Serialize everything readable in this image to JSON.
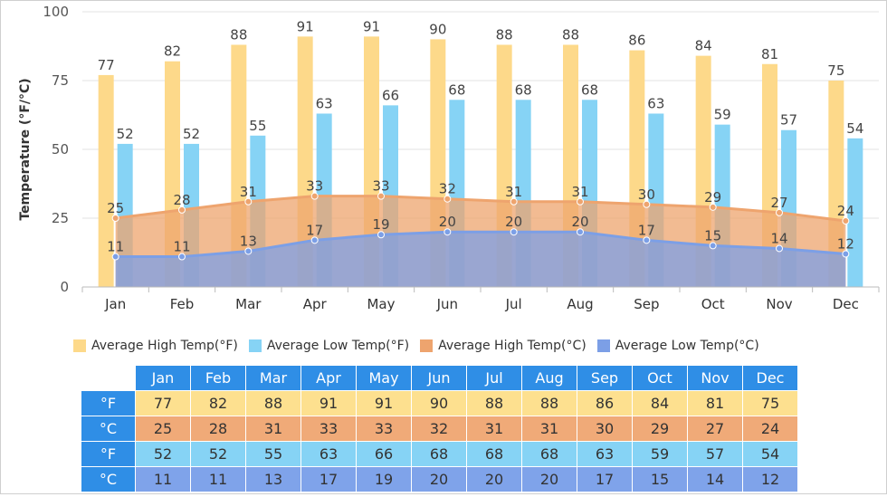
{
  "chart_data": {
    "type": "bar",
    "categories": [
      "Jan",
      "Feb",
      "Mar",
      "Apr",
      "May",
      "Jun",
      "Jul",
      "Aug",
      "Sep",
      "Oct",
      "Nov",
      "Dec"
    ],
    "ylabel": "Temperature (°F/°C)",
    "ylim": [
      0,
      100
    ],
    "yticks": [
      0,
      25,
      50,
      75,
      100
    ],
    "grid": true,
    "legend_position": "bottom",
    "series": [
      {
        "name": "Average High Temp(°F)",
        "kind": "bar",
        "color": "#fdd98a",
        "values": [
          77,
          82,
          88,
          91,
          91,
          90,
          88,
          88,
          86,
          84,
          81,
          75
        ]
      },
      {
        "name": "Average Low Temp(°F)",
        "kind": "bar",
        "color": "#86d3f5",
        "values": [
          52,
          52,
          55,
          63,
          66,
          68,
          68,
          68,
          63,
          59,
          57,
          54
        ]
      },
      {
        "name": "Average High Temp(°C)",
        "kind": "area",
        "color": "#eea46e",
        "values": [
          25,
          28,
          31,
          33,
          33,
          32,
          31,
          31,
          30,
          29,
          27,
          24
        ]
      },
      {
        "name": "Average Low Temp(°C)",
        "kind": "area",
        "color": "#7c9fe6",
        "values": [
          11,
          11,
          13,
          17,
          19,
          20,
          20,
          20,
          17,
          15,
          14,
          12
        ]
      }
    ]
  },
  "table": {
    "months": [
      "Jan",
      "Feb",
      "Mar",
      "Apr",
      "May",
      "Jun",
      "Jul",
      "Aug",
      "Sep",
      "Oct",
      "Nov",
      "Dec"
    ],
    "rows": [
      {
        "unit": "°F",
        "color": "#fde08f",
        "values": [
          77,
          82,
          88,
          91,
          91,
          90,
          88,
          88,
          86,
          84,
          81,
          75
        ]
      },
      {
        "unit": "°C",
        "color": "#f0aa78",
        "values": [
          25,
          28,
          31,
          33,
          33,
          32,
          31,
          31,
          30,
          29,
          27,
          24
        ]
      },
      {
        "unit": "°F",
        "color": "#86d3f5",
        "values": [
          52,
          52,
          55,
          63,
          66,
          68,
          68,
          68,
          63,
          59,
          57,
          54
        ]
      },
      {
        "unit": "°C",
        "color": "#7fa3ea",
        "values": [
          11,
          11,
          13,
          17,
          19,
          20,
          20,
          20,
          17,
          15,
          14,
          12
        ]
      }
    ]
  }
}
